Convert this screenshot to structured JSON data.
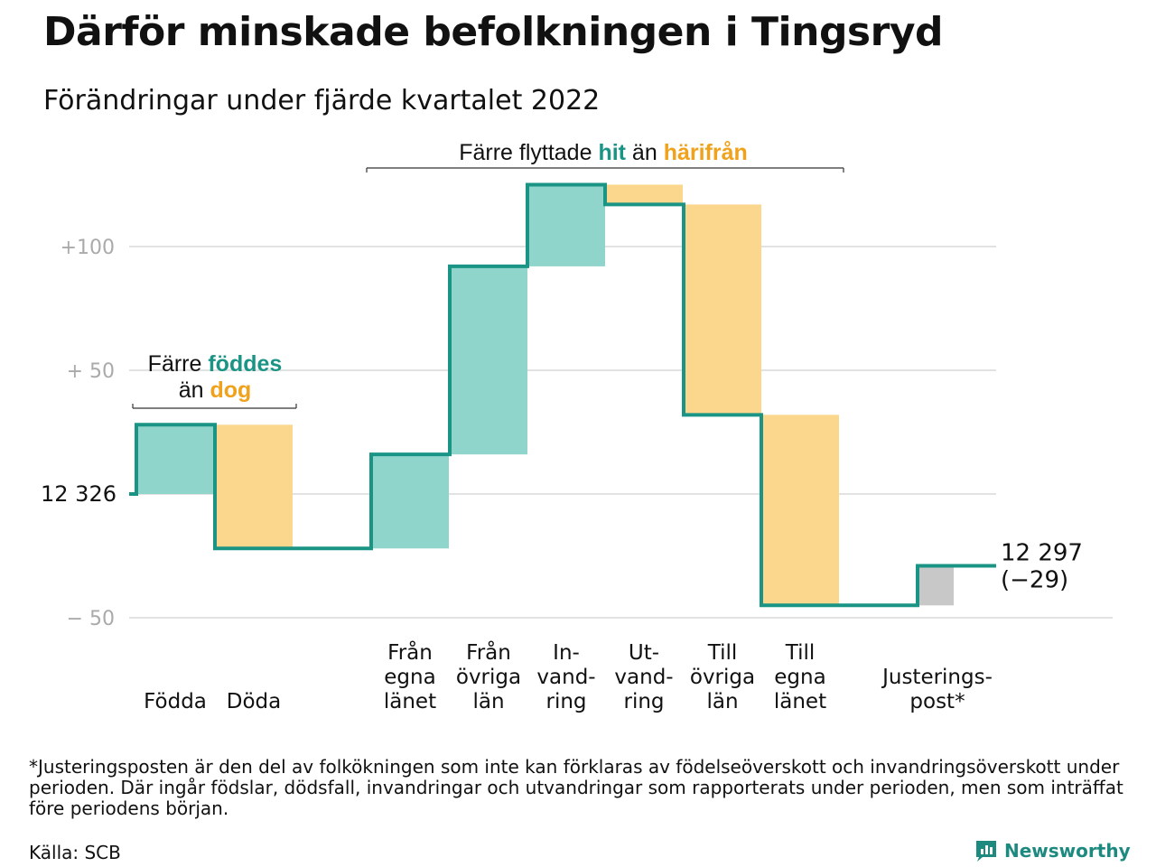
{
  "title": "Därför minskade befolkningen i Tingsryd",
  "subtitle": "Förändringar under fjärde kvartalet 2022",
  "colors": {
    "positive": "#8fd5cb",
    "negative": "#fbd78e",
    "adjustment": "#c8c8c8",
    "line": "#1a9484",
    "teal_text": "#1a9484",
    "orange_text": "#f0a21c",
    "grid": "#e2e2e2",
    "tick_text": "#aaaaaa"
  },
  "annotations": {
    "born": {
      "prefix": "Färre ",
      "hl1": "föddes",
      "line2_prefix": "än ",
      "hl2": "dog"
    },
    "moved": {
      "prefix": "Färre flyttade ",
      "hl1": "hit",
      "middle": " än ",
      "hl2": "härifrån"
    }
  },
  "start_label": "12 326",
  "end_label": {
    "value": "12 297",
    "change": "(−29)"
  },
  "footnote": "*Justeringsposten är den del av folkökningen som inte kan förklaras av födelseöverskott och invandringsöverskott under perioden. Där ingår födslar, dödsfall, invandringar och utvandringar som rapporterats under perioden, men som inträffat före periodens början.",
  "source": "Källa: SCB",
  "brand": "Newsworthy",
  "chart_data": {
    "type": "waterfall",
    "start_value": 12326,
    "end_value": 12297,
    "net_change": -29,
    "y_ticks": [
      {
        "value": 100,
        "label": "+100"
      },
      {
        "value": 50,
        "label": "+ 50"
      },
      {
        "value": 0,
        "label": ""
      },
      {
        "value": -50,
        "label": "− 50"
      }
    ],
    "ylim": [
      -50,
      125
    ],
    "steps": [
      {
        "label": [
          "Födda"
        ],
        "change": 28,
        "kind": "positive"
      },
      {
        "label": [
          "Döda"
        ],
        "change": -50,
        "kind": "negative"
      },
      {
        "label": [
          "Från",
          "egna",
          "länet"
        ],
        "change": 38,
        "kind": "positive"
      },
      {
        "label": [
          "Från",
          "övriga",
          "län"
        ],
        "change": 76,
        "kind": "positive"
      },
      {
        "label": [
          "In-",
          "vand-",
          "ring"
        ],
        "change": 33,
        "kind": "positive"
      },
      {
        "label": [
          "Ut-",
          "vand-",
          "ring"
        ],
        "change": -8,
        "kind": "negative"
      },
      {
        "label": [
          "Till",
          "övriga",
          "län"
        ],
        "change": -85,
        "kind": "negative"
      },
      {
        "label": [
          "Till",
          "egna",
          "länet"
        ],
        "change": -77,
        "kind": "negative"
      },
      {
        "label": [
          "Justerings-",
          "post*"
        ],
        "change": 16,
        "kind": "adjustment"
      }
    ]
  }
}
